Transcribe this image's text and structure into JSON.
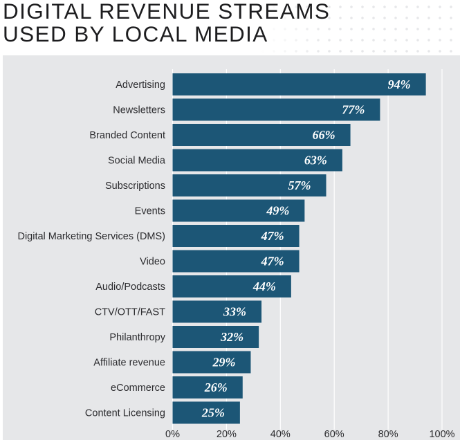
{
  "header": {
    "title_line1": "DIGITAL REVENUE STREAMS",
    "title_line2": "USED BY LOCAL MEDIA"
  },
  "colors": {
    "bar": "#1c5676",
    "panel_background": "#e6e7e9",
    "gridline": "#ffffff",
    "value_label": "#ffffff"
  },
  "chart_data": {
    "type": "bar",
    "orientation": "horizontal",
    "title": "DIGITAL REVENUE STREAMS USED BY LOCAL MEDIA",
    "xlabel": "",
    "ylabel": "",
    "xlim": [
      0,
      100
    ],
    "grid": true,
    "value_suffix": "%",
    "categories": [
      "Advertising",
      "Newsletters",
      "Branded Content",
      "Social Media",
      "Subscriptions",
      "Events",
      "Digital Marketing Services (DMS)",
      "Video",
      "Audio/Podcasts",
      "CTV/OTT/FAST",
      "Philanthropy",
      "Affiliate revenue",
      "eCommerce",
      "Content Licensing"
    ],
    "values": [
      94,
      77,
      66,
      63,
      57,
      49,
      47,
      47,
      44,
      33,
      32,
      29,
      26,
      25
    ],
    "data_labels": [
      "94%",
      "77%",
      "66%",
      "63%",
      "57%",
      "49%",
      "47%",
      "47%",
      "44%",
      "33%",
      "32%",
      "29%",
      "26%",
      "25%"
    ],
    "x_ticks": [
      0,
      20,
      40,
      60,
      80,
      100
    ],
    "x_tick_labels": [
      "0%",
      "20%",
      "40%",
      "60%",
      "80%",
      "100%"
    ]
  }
}
